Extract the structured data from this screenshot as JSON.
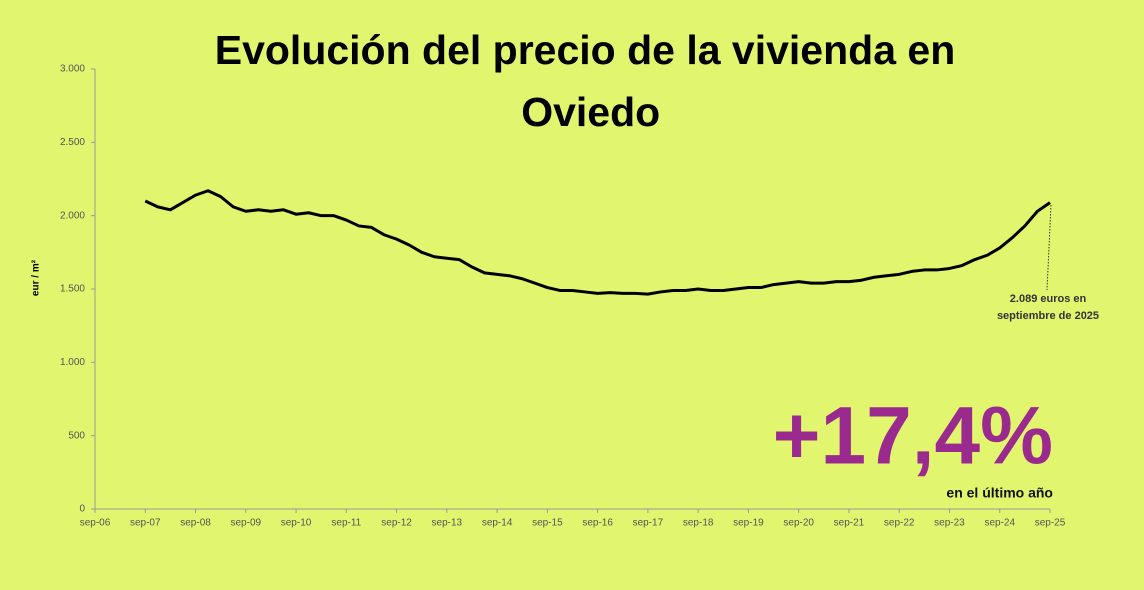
{
  "chart_data": {
    "type": "line",
    "title": "Evolución del precio de la vivienda en Oviedo",
    "y_label": "eur / m²",
    "annotation": [
      "2.089 euros en",
      "septiembre de 2025"
    ],
    "highlight": "+17,4%",
    "highlight_caption": "en el último año",
    "categories": [
      "sep-06",
      null,
      null,
      null,
      "sep-07",
      null,
      null,
      null,
      "sep-08",
      null,
      null,
      null,
      "sep-09",
      null,
      null,
      null,
      "sep-10",
      null,
      null,
      null,
      "sep-11",
      null,
      null,
      null,
      "sep-12",
      null,
      null,
      null,
      "sep-13",
      null,
      null,
      null,
      "sep-14",
      null,
      null,
      null,
      "sep-15",
      null,
      null,
      null,
      "sep-16",
      null,
      null,
      null,
      "sep-17",
      null,
      null,
      null,
      "sep-18",
      null,
      null,
      null,
      "sep-19",
      null,
      null,
      null,
      "sep-20",
      null,
      null,
      null,
      "sep-21",
      null,
      null,
      null,
      "sep-22",
      null,
      null,
      null,
      "sep-23",
      null,
      null,
      null,
      "sep-24",
      null,
      null,
      null,
      "sep-25"
    ],
    "series": [
      {
        "name": "Oviedo",
        "color": "#000000",
        "values": [
          null,
          null,
          null,
          null,
          2100,
          2060,
          2040,
          2090,
          2140,
          2170,
          2130,
          2060,
          2030,
          2040,
          2030,
          2040,
          2010,
          2020,
          2000,
          2000,
          1970,
          1930,
          1920,
          1870,
          1840,
          1800,
          1750,
          1720,
          1710,
          1700,
          1650,
          1610,
          1600,
          1590,
          1570,
          1540,
          1510,
          1490,
          1490,
          1480,
          1470,
          1475,
          1470,
          1470,
          1465,
          1480,
          1490,
          1490,
          1500,
          1490,
          1490,
          1500,
          1510,
          1510,
          1530,
          1540,
          1550,
          1540,
          1540,
          1550,
          1550,
          1560,
          1580,
          1590,
          1600,
          1620,
          1630,
          1630,
          1640,
          1660,
          1700,
          1730,
          1780,
          1850,
          1930,
          2030,
          2089
        ]
      }
    ],
    "ylim": [
      0,
      3000
    ],
    "yticks": [
      0,
      500,
      {
        "value": 1000,
        "label": "1.000"
      },
      {
        "value": 1500,
        "label": "1.500"
      },
      {
        "value": 2000,
        "label": "2.000"
      },
      {
        "value": 2500,
        "label": "2.500"
      },
      {
        "value": 3000,
        "label": "3.000"
      }
    ],
    "highlight_color": "#9b2a8f",
    "grid": false
  }
}
